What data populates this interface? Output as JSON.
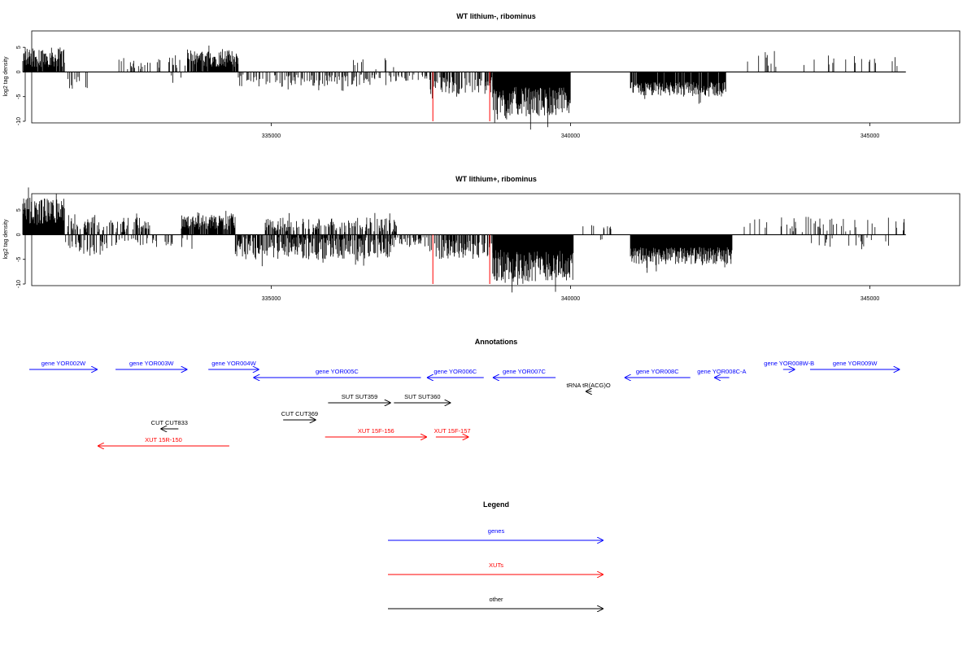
{
  "colors": {
    "gene": "#0000ff",
    "xut": "#ff0000",
    "other": "#000000",
    "highlight": "#ff0000"
  },
  "chart_data": [
    {
      "type": "bar",
      "title": "WT lithium-, ribominus",
      "ylabel": "log2 tag density",
      "xlim": [
        331000,
        346500
      ],
      "ylim": [
        -10,
        8
      ],
      "yticks": [
        -10,
        -5,
        0,
        5
      ],
      "yticklabels": [
        "-10",
        "-5",
        "0",
        "5"
      ],
      "xticks": [
        335000,
        340000,
        345000
      ],
      "xticklabels": [
        "335000",
        "340000",
        "345000"
      ],
      "x_start": 330850,
      "x_end": 345600,
      "highlight_bars": [
        {
          "x": 337700,
          "y": -10
        },
        {
          "x": 338650,
          "y": -10
        }
      ],
      "signal_blocks": [
        {
          "from": 330850,
          "to": 331550,
          "ymin": 1,
          "ymax": 5,
          "density": 0.9
        },
        {
          "from": 331550,
          "to": 331950,
          "ymin": -3.5,
          "ymax": -1,
          "density": 0.2
        },
        {
          "from": 332400,
          "to": 333700,
          "ymin": 0.5,
          "ymax": 3,
          "density": 0.15
        },
        {
          "from": 333300,
          "to": 333500,
          "ymin": -2.5,
          "ymax": -0.5,
          "density": 0.2
        },
        {
          "from": 333600,
          "to": 334450,
          "ymin": 1,
          "ymax": 4.5,
          "density": 0.9
        },
        {
          "from": 334450,
          "to": 337000,
          "ymin": -3,
          "ymax": -0.5,
          "density": 0.35
        },
        {
          "from": 336300,
          "to": 337100,
          "ymin": 0.5,
          "ymax": 3.5,
          "density": 0.12
        },
        {
          "from": 337000,
          "to": 337650,
          "ymin": -2,
          "ymax": -0.5,
          "density": 0.2
        },
        {
          "from": 337650,
          "to": 338700,
          "ymin": -4.5,
          "ymax": -1,
          "density": 0.5
        },
        {
          "from": 338700,
          "to": 340000,
          "ymin": -9,
          "ymax": -3,
          "density": 1.0
        },
        {
          "from": 340300,
          "to": 340400,
          "ymin": -2,
          "ymax": -1,
          "density": 0.1
        },
        {
          "from": 341000,
          "to": 342600,
          "ymin": -5,
          "ymax": -2,
          "density": 0.95
        },
        {
          "from": 342900,
          "to": 345600,
          "ymin": 1,
          "ymax": 3.5,
          "density": 0.08
        }
      ]
    },
    {
      "type": "bar",
      "title": "WT lithium+, ribominus",
      "ylabel": "log2 tag density",
      "xlim": [
        331000,
        346500
      ],
      "ylim": [
        -10,
        8
      ],
      "yticks": [
        -10,
        -5,
        0,
        5
      ],
      "yticklabels": [
        "-10",
        "-5",
        "0",
        "5"
      ],
      "xticks": [
        335000,
        340000,
        345000
      ],
      "xticklabels": [
        "335000",
        "340000",
        "345000"
      ],
      "x_start": 330850,
      "x_end": 345600,
      "highlight_bars": [
        {
          "x": 337700,
          "y": -10
        },
        {
          "x": 338650,
          "y": -10
        }
      ],
      "signal_blocks": [
        {
          "from": 330850,
          "to": 331550,
          "ymin": 2,
          "ymax": 7.5,
          "density": 1.0
        },
        {
          "from": 331550,
          "to": 332300,
          "ymin": -4.5,
          "ymax": -1,
          "density": 0.35
        },
        {
          "from": 331600,
          "to": 333000,
          "ymin": 0.5,
          "ymax": 3.5,
          "density": 0.45
        },
        {
          "from": 332300,
          "to": 333700,
          "ymin": -2.5,
          "ymax": -0.5,
          "density": 0.15
        },
        {
          "from": 333500,
          "to": 334400,
          "ymin": 1,
          "ymax": 4,
          "density": 0.85
        },
        {
          "from": 334400,
          "to": 337000,
          "ymin": -5,
          "ymax": -0.5,
          "density": 0.7
        },
        {
          "from": 334900,
          "to": 337100,
          "ymin": 0.5,
          "ymax": 3.5,
          "density": 0.45
        },
        {
          "from": 337000,
          "to": 337650,
          "ymin": -2.5,
          "ymax": -0.5,
          "density": 0.3
        },
        {
          "from": 337650,
          "to": 338700,
          "ymin": -5,
          "ymax": -1,
          "density": 0.6
        },
        {
          "from": 338700,
          "to": 340050,
          "ymin": -9.5,
          "ymax": -3,
          "density": 1.0
        },
        {
          "from": 340200,
          "to": 340700,
          "ymin": 0.5,
          "ymax": 2,
          "density": 0.1
        },
        {
          "from": 340500,
          "to": 340600,
          "ymin": -1.5,
          "ymax": -0.5,
          "density": 0.1
        },
        {
          "from": 341000,
          "to": 342700,
          "ymin": -6,
          "ymax": -2.5,
          "density": 1.0
        },
        {
          "from": 342900,
          "to": 345600,
          "ymin": 0.5,
          "ymax": 3.5,
          "density": 0.15
        },
        {
          "from": 343600,
          "to": 345400,
          "ymin": -2.5,
          "ymax": -0.5,
          "density": 0.06
        }
      ]
    }
  ],
  "annotations": {
    "title": "Annotations",
    "features": [
      {
        "label": "gene YOR002W",
        "kind": "gene",
        "start": 330950,
        "end": 332100,
        "strand": "+",
        "track": 0
      },
      {
        "label": "gene YOR003W",
        "kind": "gene",
        "start": 332400,
        "end": 333600,
        "strand": "+",
        "track": 0
      },
      {
        "label": "gene YOR004W",
        "kind": "gene",
        "start": 333950,
        "end": 334800,
        "strand": "+",
        "track": 0
      },
      {
        "label": "gene YOR005C",
        "kind": "gene",
        "start": 334700,
        "end": 337500,
        "strand": "-",
        "track": 1
      },
      {
        "label": "gene YOR006C",
        "kind": "gene",
        "start": 337600,
        "end": 338550,
        "strand": "-",
        "track": 1
      },
      {
        "label": "gene YOR007C",
        "kind": "gene",
        "start": 338700,
        "end": 339750,
        "strand": "-",
        "track": 1
      },
      {
        "label": "gene YOR008C",
        "kind": "gene",
        "start": 340900,
        "end": 342000,
        "strand": "-",
        "track": 1
      },
      {
        "label": "gene YOR008C-A",
        "kind": "gene",
        "start": 342400,
        "end": 342650,
        "strand": "-",
        "track": 1
      },
      {
        "label": "gene YOR008W-B",
        "kind": "gene",
        "start": 343550,
        "end": 343750,
        "strand": "+",
        "track": 0
      },
      {
        "label": "gene YOR009W",
        "kind": "gene",
        "start": 344000,
        "end": 345500,
        "strand": "+",
        "track": 0
      },
      {
        "label": "tRNA tR(ACG)O",
        "kind": "other",
        "start": 340250,
        "end": 340350,
        "strand": "-",
        "track": 2
      },
      {
        "label": "SUT SUT359",
        "kind": "other",
        "start": 335950,
        "end": 337000,
        "strand": "+",
        "track": 3
      },
      {
        "label": "SUT SUT360",
        "kind": "other",
        "start": 337050,
        "end": 338000,
        "strand": "+",
        "track": 3
      },
      {
        "label": "CUT CUT369",
        "kind": "other",
        "start": 335200,
        "end": 335750,
        "strand": "+",
        "track": 4
      },
      {
        "label": "CUT CUT833",
        "kind": "other",
        "start": 333150,
        "end": 333450,
        "strand": "-",
        "track": 5
      },
      {
        "label": "XUT 15F-156",
        "kind": "xut",
        "start": 335900,
        "end": 337600,
        "strand": "+",
        "track": 6
      },
      {
        "label": "XUT 15F-157",
        "kind": "xut",
        "start": 337750,
        "end": 338300,
        "strand": "+",
        "track": 6
      },
      {
        "label": "XUT 15R-150",
        "kind": "xut",
        "start": 332100,
        "end": 334300,
        "strand": "-",
        "track": 7
      }
    ]
  },
  "legend": {
    "title": "Legend",
    "items": [
      {
        "label": "genes",
        "kind": "gene"
      },
      {
        "label": "XUTs",
        "kind": "xut"
      },
      {
        "label": "other",
        "kind": "other"
      }
    ]
  }
}
